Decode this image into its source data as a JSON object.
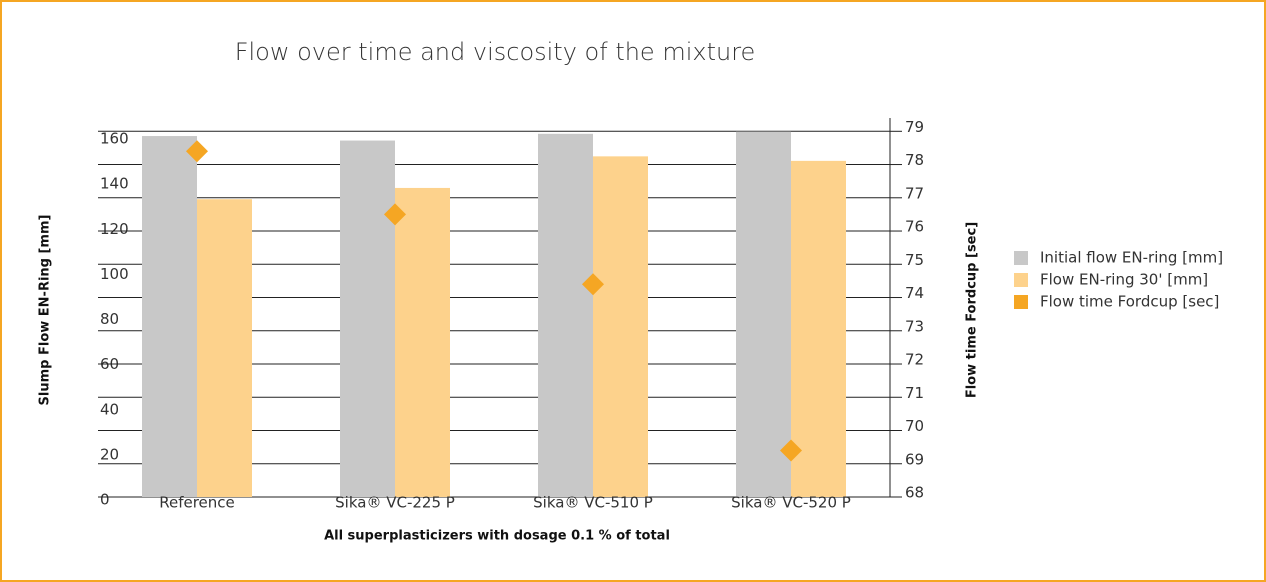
{
  "chart_data": {
    "type": "bar",
    "title": "Flow over time and viscosity of the mixture",
    "x_label": "All superplasticizers with dosage 0.1 % of total",
    "y_label": "Slump Flow EN-Ring [mm]",
    "y2_label": "Flow time Fordcup [sec]",
    "categories": [
      "Reference",
      "Sika® VC-225 P",
      "Sika® VC-510 P",
      "Sika® VC-520 P"
    ],
    "series": [
      {
        "name": "Initial flow EN-ring [mm]",
        "color": "#c8c8c8",
        "values": [
          160,
          158,
          161,
          162
        ]
      },
      {
        "name": "Flow EN-ring 30' [mm]",
        "color": "#fdd28c",
        "values": [
          132,
          137,
          151,
          149
        ]
      },
      {
        "name": "Flow time Fordcup [sec]",
        "color": "#f5a623",
        "values": [
          78.4,
          76.5,
          74.4,
          69.4
        ],
        "axis": "y2",
        "marker": "diamond"
      }
    ],
    "ylim": [
      0,
      168
    ],
    "yticks": [
      0,
      20,
      40,
      60,
      80,
      100,
      120,
      140,
      160
    ],
    "y2lim": [
      68,
      79.4
    ],
    "y2ticks": [
      68,
      69,
      70,
      71,
      72,
      73,
      74,
      75,
      76,
      77,
      78,
      79
    ],
    "grid": true,
    "legend": "right"
  }
}
